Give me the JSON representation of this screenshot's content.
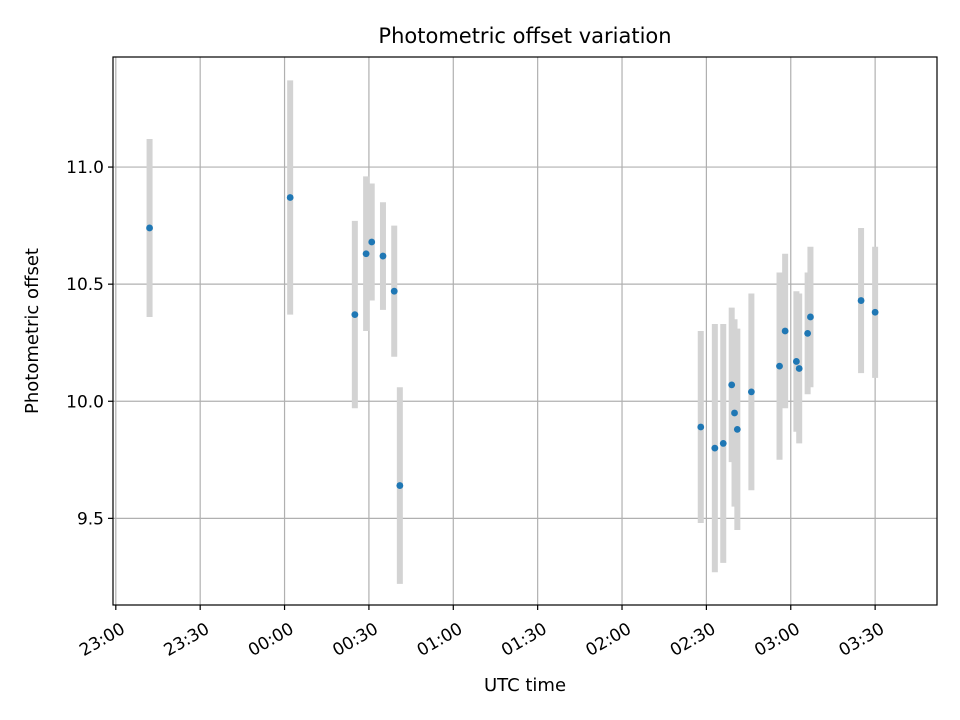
{
  "chart_data": {
    "type": "scatter",
    "title": "Photometric offset variation",
    "xlabel": "UTC time",
    "ylabel": "Photometric offset",
    "grid": true,
    "x_range": [
      "22:59",
      "03:52"
    ],
    "ylim": [
      9.13,
      11.47
    ],
    "x_ticks": [
      "23:00",
      "23:30",
      "00:00",
      "00:30",
      "01:00",
      "01:30",
      "02:00",
      "02:30",
      "03:00",
      "03:30"
    ],
    "y_ticks": [
      9.5,
      10.0,
      10.5,
      11.0
    ],
    "y_tick_labels": [
      "9.5",
      "10.0",
      "10.5",
      "11.0"
    ],
    "colors": {
      "point": "#1f77b4",
      "error_bar": "#d3d3d3",
      "grid": "#b0b0b0"
    },
    "series": [
      {
        "points": [
          {
            "t": "23:12",
            "y": 10.74,
            "err": 0.38
          },
          {
            "t": "00:02",
            "y": 10.87,
            "err": 0.5
          },
          {
            "t": "00:25",
            "y": 10.37,
            "err": 0.4
          },
          {
            "t": "00:29",
            "y": 10.63,
            "err": 0.33
          },
          {
            "t": "00:31",
            "y": 10.68,
            "err": 0.25
          },
          {
            "t": "00:35",
            "y": 10.62,
            "err": 0.23
          },
          {
            "t": "00:39",
            "y": 10.47,
            "err": 0.28
          },
          {
            "t": "00:41",
            "y": 9.64,
            "err": 0.42
          },
          {
            "t": "02:28",
            "y": 9.89,
            "err": 0.41
          },
          {
            "t": "02:33",
            "y": 9.8,
            "err": 0.53
          },
          {
            "t": "02:36",
            "y": 9.82,
            "err": 0.51
          },
          {
            "t": "02:39",
            "y": 10.07,
            "err": 0.33
          },
          {
            "t": "02:40",
            "y": 9.95,
            "err": 0.4
          },
          {
            "t": "02:41",
            "y": 9.88,
            "err": 0.43
          },
          {
            "t": "02:46",
            "y": 10.04,
            "err": 0.42
          },
          {
            "t": "02:56",
            "y": 10.15,
            "err": 0.4
          },
          {
            "t": "02:58",
            "y": 10.3,
            "err": 0.33
          },
          {
            "t": "03:02",
            "y": 10.17,
            "err": 0.3
          },
          {
            "t": "03:03",
            "y": 10.14,
            "err": 0.32
          },
          {
            "t": "03:06",
            "y": 10.29,
            "err": 0.26
          },
          {
            "t": "03:07",
            "y": 10.36,
            "err": 0.3
          },
          {
            "t": "03:25",
            "y": 10.43,
            "err": 0.31
          },
          {
            "t": "03:30",
            "y": 10.38,
            "err": 0.28
          }
        ]
      }
    ]
  }
}
